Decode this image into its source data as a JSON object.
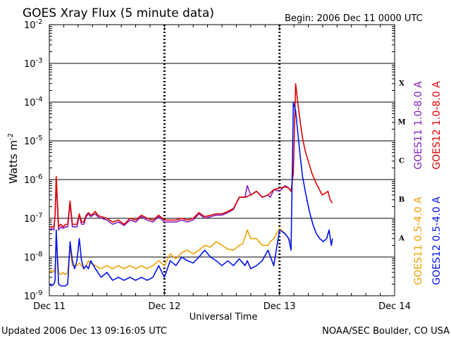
{
  "chart_data": {
    "type": "line",
    "title": "GOES Xray Flux (5 minute data)",
    "begin_label": "Begin:  2006 Dec 11 0000 UTC",
    "ylabel": "Watts m",
    "ylabel_sup": "-2",
    "xlabel": "Universal Time",
    "y_scale": "log",
    "ylim_exp": [
      -9,
      -2
    ],
    "y_ticks": [
      {
        "base": "10",
        "exp": "-9"
      },
      {
        "base": "10",
        "exp": "-8"
      },
      {
        "base": "10",
        "exp": "-7"
      },
      {
        "base": "10",
        "exp": "-6"
      },
      {
        "base": "10",
        "exp": "-5"
      },
      {
        "base": "10",
        "exp": "-4"
      },
      {
        "base": "10",
        "exp": "-3"
      },
      {
        "base": "10",
        "exp": "-2"
      }
    ],
    "x_range_days": [
      0,
      3
    ],
    "x_ticks": [
      "Dec 11",
      "Dec 12",
      "Dec 13",
      "Dec 14"
    ],
    "flare_classes": [
      {
        "label": "A",
        "exp": -8
      },
      {
        "label": "B",
        "exp": -7
      },
      {
        "label": "C",
        "exp": -6
      },
      {
        "label": "M",
        "exp": -5
      },
      {
        "label": "X",
        "exp": -4
      }
    ],
    "grid": "horizontal lines at each decade, dashed vertical lines at day boundaries",
    "footer_left": "Updated 2006 Dec 13 09:16:05 UTC",
    "footer_right": "NOAA/SEC Boulder, CO USA",
    "legend_right": [
      {
        "prefix": "GOES11",
        "band": "1.0-8.0 A",
        "color": "#8020c0"
      },
      {
        "prefix": "GOES12",
        "band": "1.0-8.0 A",
        "color": "#e00000"
      }
    ],
    "legend_left": [
      {
        "prefix": "GOES11",
        "band": "0.5-4.0 A",
        "color": "#f0a000"
      },
      {
        "prefix": "GOES12",
        "band": "0.5-4.0 A",
        "color": "#0010f0"
      }
    ],
    "series": [
      {
        "name": "GOES11 1.0-8.0 A",
        "color": "#8020c0",
        "x": [
          0.0,
          0.02,
          0.04,
          0.05,
          0.06,
          0.08,
          0.1,
          0.12,
          0.14,
          0.16,
          0.18,
          0.2,
          0.22,
          0.24,
          0.26,
          0.28,
          0.3,
          0.32,
          0.34,
          0.36,
          0.38,
          0.4,
          0.42,
          0.45,
          0.5,
          0.55,
          0.6,
          0.65,
          0.7,
          0.75,
          0.8,
          0.85,
          0.9,
          0.95,
          1.0,
          1.05,
          1.1,
          1.15,
          1.2,
          1.25,
          1.3,
          1.35,
          1.4,
          1.45,
          1.5,
          1.55,
          1.6,
          1.65,
          1.7,
          1.72,
          1.75,
          1.8,
          1.85,
          1.9,
          1.92,
          1.95,
          2.0,
          2.05,
          2.08,
          2.1
        ],
        "y": [
          5e-08,
          5.5e-08,
          5e-08,
          1.2e-07,
          1e-06,
          5e-08,
          6e-08,
          5.5e-08,
          6e-08,
          6e-08,
          2.5e-07,
          6e-08,
          6e-08,
          6e-08,
          1.2e-07,
          7e-08,
          7e-08,
          1.1e-07,
          1.3e-07,
          1.1e-07,
          1.2e-07,
          1.3e-07,
          1.1e-07,
          1e-07,
          9e-08,
          7e-08,
          8e-08,
          6.5e-08,
          9e-08,
          8e-08,
          1.1e-07,
          9e-08,
          8e-08,
          1.1e-07,
          8e-08,
          8e-08,
          8e-08,
          9e-08,
          8e-08,
          9e-08,
          1.3e-07,
          1e-07,
          1.1e-07,
          1.2e-07,
          1.2e-07,
          1.4e-07,
          1.7e-07,
          3.5e-07,
          3.5e-07,
          7e-07,
          4e-07,
          5e-07,
          3.5e-07,
          4e-07,
          3.5e-07,
          5.5e-07,
          5e-07,
          7e-07,
          6e-07,
          5e-07
        ]
      },
      {
        "name": "GOES12 1.0-8.0 A",
        "color": "#e00000",
        "x": [
          0.0,
          0.02,
          0.04,
          0.05,
          0.06,
          0.08,
          0.1,
          0.12,
          0.14,
          0.16,
          0.18,
          0.2,
          0.22,
          0.24,
          0.26,
          0.28,
          0.3,
          0.32,
          0.34,
          0.36,
          0.38,
          0.4,
          0.42,
          0.45,
          0.5,
          0.55,
          0.6,
          0.65,
          0.7,
          0.75,
          0.8,
          0.85,
          0.9,
          0.95,
          1.0,
          1.05,
          1.1,
          1.15,
          1.2,
          1.25,
          1.3,
          1.35,
          1.4,
          1.45,
          1.5,
          1.55,
          1.6,
          1.65,
          1.7,
          1.75,
          1.8,
          1.85,
          1.9,
          1.95,
          2.0,
          2.05,
          2.08,
          2.1,
          2.12,
          2.14,
          2.16,
          2.18,
          2.2,
          2.22,
          2.25,
          2.28,
          2.31,
          2.34,
          2.37,
          2.4,
          2.42,
          2.44,
          2.46
        ],
        "y": [
          6e-08,
          6e-08,
          6e-08,
          1.2e-07,
          1.2e-06,
          6e-08,
          7e-08,
          6e-08,
          7e-08,
          7e-08,
          2.8e-07,
          7e-08,
          7e-08,
          7e-08,
          1.3e-07,
          8e-08,
          8e-08,
          1.2e-07,
          1.4e-07,
          1.2e-07,
          1.3e-07,
          1.5e-07,
          1.2e-07,
          1.1e-07,
          1e-07,
          8e-08,
          9e-08,
          7e-08,
          1e-07,
          9e-08,
          1.2e-07,
          1e-07,
          9e-08,
          1.2e-07,
          9e-08,
          9e-08,
          9e-08,
          1e-07,
          9e-08,
          1e-07,
          1.4e-07,
          1.1e-07,
          1.2e-07,
          1.3e-07,
          1.3e-07,
          1.5e-07,
          1.8e-07,
          3.5e-07,
          3.5e-07,
          4e-07,
          5e-07,
          3.5e-07,
          4e-07,
          5.5e-07,
          6e-07,
          6.5e-07,
          6e-07,
          5e-07,
          1.5e-06,
          0.0003,
          9e-05,
          3e-05,
          1.2e-05,
          6e-06,
          3e-06,
          1.5e-06,
          9e-07,
          6e-07,
          4e-07,
          4.5e-07,
          5e-07,
          3e-07,
          2.5e-07
        ]
      },
      {
        "name": "GOES11 0.5-4.0 A",
        "color": "#f0a000",
        "x": [
          0.0,
          0.02,
          0.04,
          0.05,
          0.06,
          0.08,
          0.1,
          0.12,
          0.14,
          0.16,
          0.18,
          0.2,
          0.22,
          0.24,
          0.26,
          0.28,
          0.3,
          0.32,
          0.34,
          0.36,
          0.4,
          0.45,
          0.5,
          0.55,
          0.6,
          0.65,
          0.7,
          0.75,
          0.8,
          0.85,
          0.9,
          0.95,
          1.0,
          1.05,
          1.1,
          1.15,
          1.2,
          1.25,
          1.3,
          1.35,
          1.4,
          1.45,
          1.5,
          1.55,
          1.6,
          1.65,
          1.68,
          1.72,
          1.75,
          1.8,
          1.85,
          1.9,
          1.92,
          1.95,
          2.0,
          2.05,
          2.08,
          2.1
        ],
        "y": [
          4e-09,
          4.5e-09,
          4e-09,
          6e-09,
          3e-08,
          4e-09,
          3.5e-09,
          4e-09,
          3.5e-09,
          4e-09,
          1.8e-08,
          6e-09,
          6e-09,
          6e-09,
          7e-09,
          6e-09,
          5e-09,
          6e-09,
          8e-09,
          7e-09,
          6e-09,
          5e-09,
          6e-09,
          5e-09,
          6e-09,
          5e-09,
          6e-09,
          5e-09,
          6e-09,
          5e-09,
          6e-09,
          8e-09,
          6e-09,
          1.2e-08,
          9e-09,
          1.3e-08,
          1.5e-08,
          1.2e-08,
          1.5e-08,
          2e-08,
          1.8e-08,
          2.5e-08,
          2e-08,
          1.6e-08,
          1.5e-08,
          2e-08,
          2.2e-08,
          5e-08,
          3e-08,
          3e-08,
          2e-08,
          2e-08,
          2.5e-08,
          3e-08,
          5.5e-08,
          4e-08,
          3e-08,
          2.5e-08
        ]
      },
      {
        "name": "GOES12 0.5-4.0 A",
        "color": "#0010f0",
        "x": [
          0.0,
          0.02,
          0.04,
          0.05,
          0.06,
          0.08,
          0.1,
          0.12,
          0.14,
          0.16,
          0.18,
          0.2,
          0.22,
          0.24,
          0.26,
          0.28,
          0.3,
          0.32,
          0.34,
          0.36,
          0.4,
          0.45,
          0.5,
          0.55,
          0.6,
          0.65,
          0.7,
          0.75,
          0.8,
          0.85,
          0.9,
          0.95,
          1.0,
          1.05,
          1.1,
          1.15,
          1.2,
          1.25,
          1.3,
          1.35,
          1.4,
          1.45,
          1.5,
          1.55,
          1.6,
          1.65,
          1.7,
          1.72,
          1.75,
          1.8,
          1.85,
          1.9,
          1.95,
          2.0,
          2.05,
          2.08,
          2.1,
          2.12,
          2.14,
          2.16,
          2.18,
          2.2,
          2.23,
          2.26,
          2.29,
          2.32,
          2.35,
          2.38,
          2.41,
          2.43,
          2.45,
          2.46
        ],
        "y": [
          2e-09,
          1.8e-09,
          2e-09,
          2.5e-09,
          5e-08,
          2e-09,
          1.8e-09,
          1.8e-09,
          1.8e-09,
          2e-09,
          2.5e-08,
          8e-09,
          5e-09,
          8e-09,
          3e-08,
          8e-09,
          5e-09,
          6e-09,
          5e-09,
          8e-09,
          5e-09,
          3e-09,
          4e-09,
          2.5e-09,
          3e-09,
          2.5e-09,
          3e-09,
          2.5e-09,
          3e-09,
          2.5e-09,
          3e-09,
          6e-09,
          3e-09,
          8e-09,
          6e-09,
          1e-08,
          8e-09,
          7e-09,
          1e-08,
          1.5e-08,
          1e-08,
          8e-09,
          6e-09,
          8e-09,
          6e-09,
          9e-09,
          6e-09,
          8e-09,
          5e-09,
          6e-09,
          8e-09,
          1.5e-08,
          6e-09,
          5e-08,
          4e-08,
          3e-08,
          1.5e-08,
          0.0001,
          6e-05,
          1.5e-05,
          4e-06,
          1.2e-06,
          4e-07,
          1.5e-07,
          7e-08,
          4e-08,
          3e-08,
          2.5e-08,
          3e-08,
          5e-08,
          2e-08,
          3e-08
        ]
      }
    ]
  }
}
